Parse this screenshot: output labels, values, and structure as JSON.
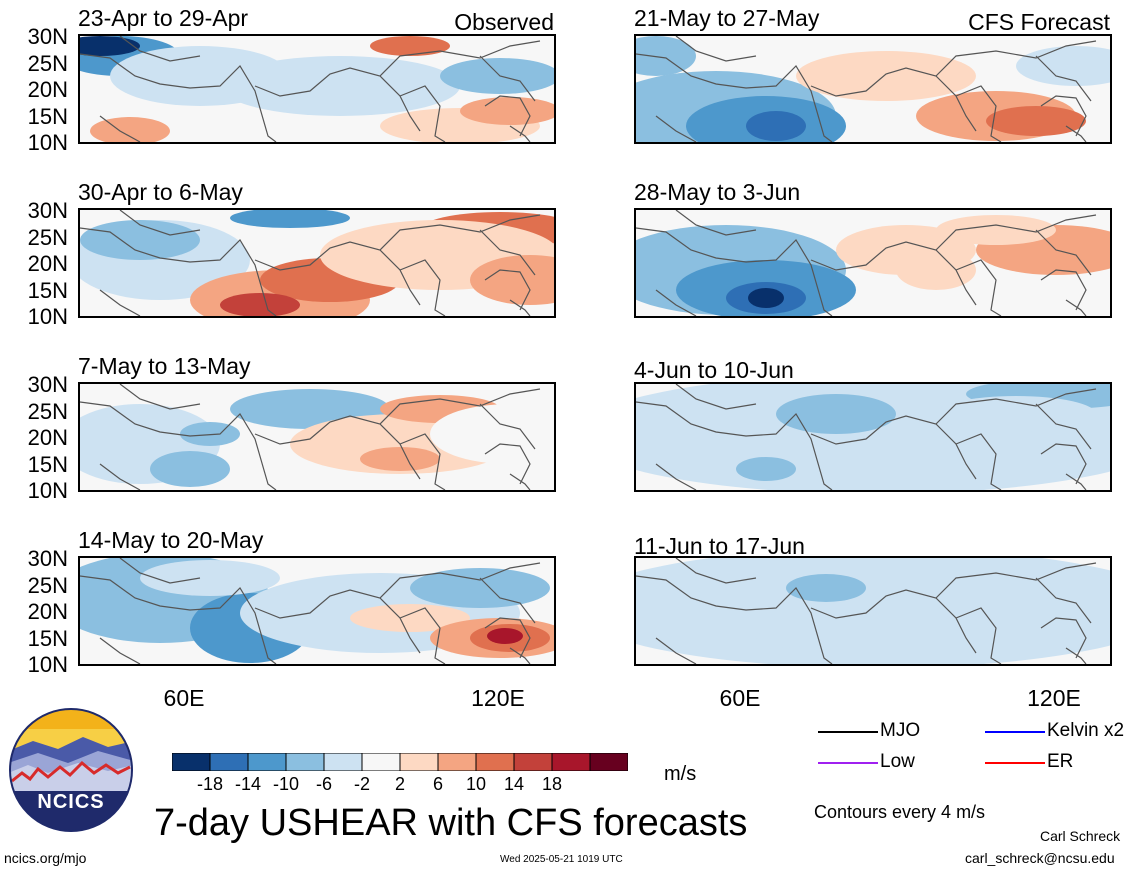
{
  "panels": [
    {
      "title": "23-Apr to 29-Apr",
      "tag": "Observed"
    },
    {
      "title": "30-Apr to 6-May",
      "tag": ""
    },
    {
      "title": "7-May to 13-May",
      "tag": ""
    },
    {
      "title": "14-May to 20-May",
      "tag": ""
    },
    {
      "title": "21-May to 27-May",
      "tag": "CFS Forecast"
    },
    {
      "title": "28-May to 3-Jun",
      "tag": ""
    },
    {
      "title": "4-Jun to 10-Jun",
      "tag": ""
    },
    {
      "title": "11-Jun to 17-Jun",
      "tag": ""
    }
  ],
  "lat_labels": [
    "30N",
    "25N",
    "20N",
    "15N",
    "10N"
  ],
  "lon_labels": [
    "60E",
    "120E"
  ],
  "colorbar": {
    "colors": [
      "#08306b",
      "#2e6fb5",
      "#4d98cc",
      "#8bbfe0",
      "#cde2f2",
      "#f7f7f7",
      "#fdd9c3",
      "#f4a582",
      "#e0704f",
      "#c3413a",
      "#a8162b",
      "#67001f"
    ],
    "labels": [
      "-18",
      "-14",
      "-10",
      "-6",
      "-2",
      "2",
      "6",
      "10",
      "14",
      "18"
    ],
    "unit": "m/s"
  },
  "legend": [
    {
      "label": "MJO",
      "color": "#000000"
    },
    {
      "label": "Kelvin x2",
      "color": "#0000ff"
    },
    {
      "label": "Low",
      "color": "#a020f0"
    },
    {
      "label": "ER",
      "color": "#ff0000"
    }
  ],
  "contour_note": "Contours every 4 m/s",
  "main_title": "7-day USHEAR with CFS forecasts",
  "logo_text": "NCICS",
  "footer": {
    "left": "ncics.org/mjo",
    "center": "Wed 2025-05-21 1019 UTC",
    "author": "Carl Schreck",
    "email": "carl_schreck@ncsu.edu"
  }
}
